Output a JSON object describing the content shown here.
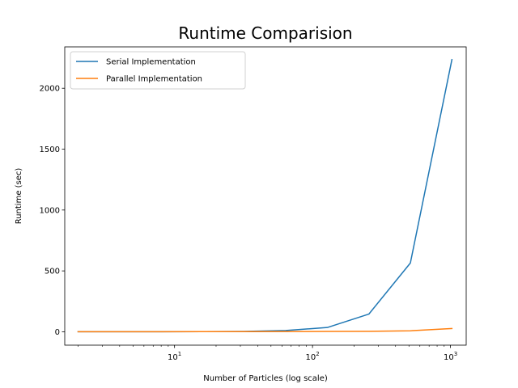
{
  "chart_data": {
    "type": "line",
    "title": "Runtime Comparision",
    "xlabel": "Number of Particles (log scale)",
    "ylabel": "Runtime (sec)",
    "xscale": "log",
    "xlim": [
      1.6,
      1300
    ],
    "ylim": [
      -110,
      2340
    ],
    "xticks": [
      {
        "value": 10,
        "base": "10",
        "exp": "1"
      },
      {
        "value": 100,
        "base": "10",
        "exp": "2"
      },
      {
        "value": 1000,
        "base": "10",
        "exp": "3"
      }
    ],
    "yticks": [
      {
        "value": 0,
        "label": "0"
      },
      {
        "value": 500,
        "label": "500"
      },
      {
        "value": 1000,
        "label": "1000"
      },
      {
        "value": 1500,
        "label": "1500"
      },
      {
        "value": 2000,
        "label": "2000"
      }
    ],
    "grid": false,
    "legend_position": "top-left",
    "x": [
      2,
      4,
      8,
      16,
      32,
      64,
      128,
      256,
      512,
      1024
    ],
    "series": [
      {
        "name": "Serial Implementation",
        "color": "#1f77b4",
        "values": [
          0.1,
          0.3,
          0.6,
          1.5,
          3,
          10,
          35,
          145,
          565,
          2235
        ]
      },
      {
        "name": "Parallel Implementation",
        "color": "#ff7f0e",
        "values": [
          0.1,
          0.2,
          0.4,
          0.8,
          1.2,
          1.8,
          2.5,
          3.5,
          8,
          27
        ]
      }
    ]
  }
}
